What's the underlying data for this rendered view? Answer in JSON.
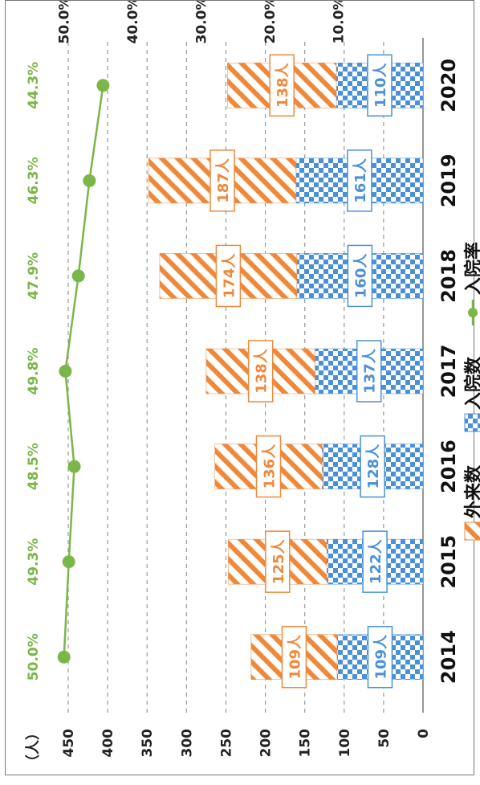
{
  "chart_data": {
    "type": "bar+line",
    "orientation": "rotated-90",
    "categories": [
      "2014",
      "2015",
      "2016",
      "2017",
      "2018",
      "2019",
      "2020"
    ],
    "y_unit_label": "（人）",
    "y_ticks": [
      "0",
      "50",
      "100",
      "150",
      "200",
      "250",
      "300",
      "350",
      "400",
      "450"
    ],
    "y_range": [
      0,
      450
    ],
    "y2_ticks": [
      "10.0%",
      "20.0%",
      "30.0%",
      "40.0%",
      "50.0%"
    ],
    "y2_range": [
      0.0,
      55.0
    ],
    "series": [
      {
        "name": "入院数",
        "type": "stacked-bar",
        "values": [
          109,
          122,
          128,
          137,
          160,
          161,
          110
        ],
        "labels": [
          "109人",
          "122人",
          "128人",
          "137人",
          "160人",
          "161人",
          "110人"
        ],
        "color": "#4a90d9"
      },
      {
        "name": "外来数",
        "type": "stacked-bar",
        "values": [
          109,
          125,
          136,
          138,
          174,
          187,
          138
        ],
        "labels": [
          "109人",
          "125人",
          "136人",
          "138人",
          "174人",
          "187人",
          "138人"
        ],
        "color": "#f0883a"
      },
      {
        "name": "入院率",
        "type": "line",
        "values": [
          50.0,
          49.3,
          48.5,
          49.8,
          47.9,
          46.3,
          44.3
        ],
        "labels": [
          "50.0%",
          "49.3%",
          "48.5%",
          "49.8%",
          "47.9%",
          "46.3%",
          "44.3%"
        ],
        "color": "#7ab648"
      }
    ],
    "legend": {
      "placement": "bottom",
      "items": [
        "外来数",
        "入院数",
        "入院率"
      ]
    },
    "grid": "horizontal-dotted"
  }
}
